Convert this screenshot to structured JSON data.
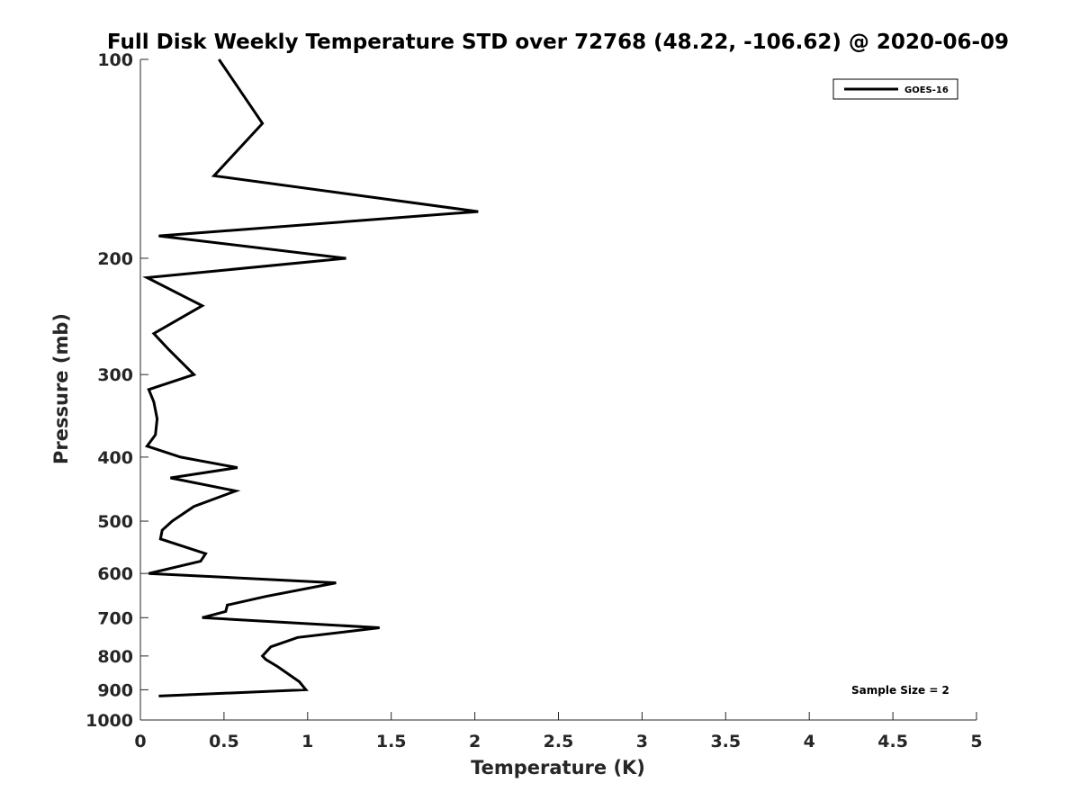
{
  "chart_data": {
    "type": "line",
    "title": "Full Disk Weekly Temperature STD over 72768 (48.22, -106.62) @ 2020-06-09",
    "xlabel": "Temperature (K)",
    "ylabel": "Pressure (mb)",
    "xlim": [
      0,
      5
    ],
    "ylim": [
      100,
      1000
    ],
    "y_scale": "log",
    "y_reversed": true,
    "x_ticks": [
      "0",
      "0.5",
      "1",
      "1.5",
      "2",
      "2.5",
      "3",
      "3.5",
      "4",
      "4.5",
      "5"
    ],
    "y_ticks": [
      "100",
      "200",
      "300",
      "400",
      "500",
      "600",
      "700",
      "800",
      "900",
      "1000"
    ],
    "grid": false,
    "legend_position": "top-right",
    "annotation": "Sample Size = 2",
    "series": [
      {
        "name": "GOES-16",
        "color": "#000000",
        "x": [
          0.47,
          0.73,
          0.44,
          2.02,
          0.11,
          1.23,
          0.04,
          0.37,
          0.08,
          0.17,
          0.32,
          0.05,
          0.08,
          0.1,
          0.09,
          0.04,
          0.24,
          0.58,
          0.18,
          0.57,
          0.32,
          0.19,
          0.13,
          0.12,
          0.39,
          0.36,
          0.05,
          1.17,
          0.75,
          0.52,
          0.51,
          0.37,
          1.43,
          0.94,
          0.78,
          0.73,
          0.75,
          0.82,
          0.95,
          0.99,
          0.11
        ],
        "y": [
          100,
          125,
          150,
          170,
          185,
          200,
          214,
          236,
          260,
          275,
          300,
          316,
          330,
          350,
          370,
          385,
          400,
          415,
          430,
          450,
          475,
          500,
          516,
          532,
          560,
          575,
          600,
          620,
          650,
          670,
          685,
          700,
          725,
          750,
          775,
          800,
          810,
          830,
          875,
          900,
          920
        ]
      }
    ]
  }
}
